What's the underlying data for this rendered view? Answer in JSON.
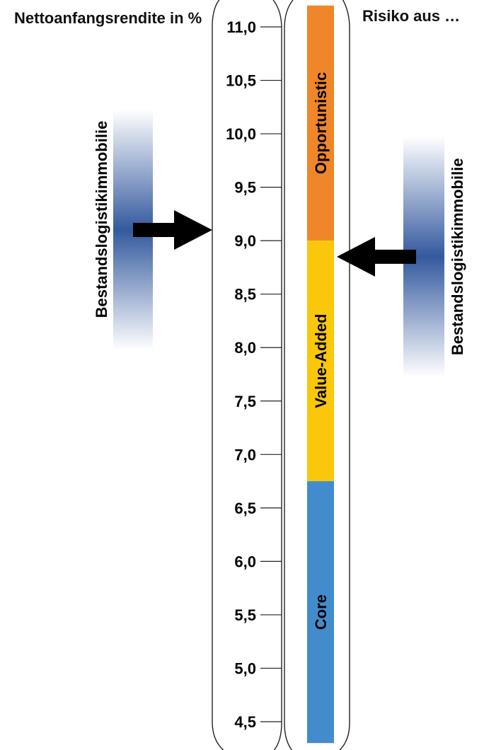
{
  "chart_data": {
    "type": "bar",
    "title": "",
    "ylabel": "Nettoanfangsrendite in %",
    "risk_label": "Risiko aus …",
    "ylim": [
      4.5,
      11.0
    ],
    "ticks": [
      "11,0",
      "10,5",
      "10,0",
      "9,5",
      "9,0",
      "8,5",
      "8,0",
      "7,5",
      "7,0",
      "6,5",
      "6,0",
      "5,5",
      "5,0",
      "4,5"
    ],
    "tick_values": [
      11.0,
      10.5,
      10.0,
      9.5,
      9.0,
      8.5,
      8.0,
      7.5,
      7.0,
      6.5,
      6.0,
      5.5,
      5.0,
      4.5
    ],
    "bands": [
      {
        "name": "Opportunistic",
        "from": 9.0,
        "to": 11.2,
        "color": "#f0862a"
      },
      {
        "name": "Value-Added",
        "from": 6.75,
        "to": 9.0,
        "color": "#fbc70b"
      },
      {
        "name": "Core",
        "from": 4.3,
        "to": 6.75,
        "color": "#428ccd"
      }
    ],
    "markers": [
      {
        "side": "left",
        "label": "Bestandslogistikimmobilie",
        "value": 9.1
      },
      {
        "side": "right",
        "label": "Bestandslogistikimmobilie",
        "value": 8.85
      }
    ]
  }
}
